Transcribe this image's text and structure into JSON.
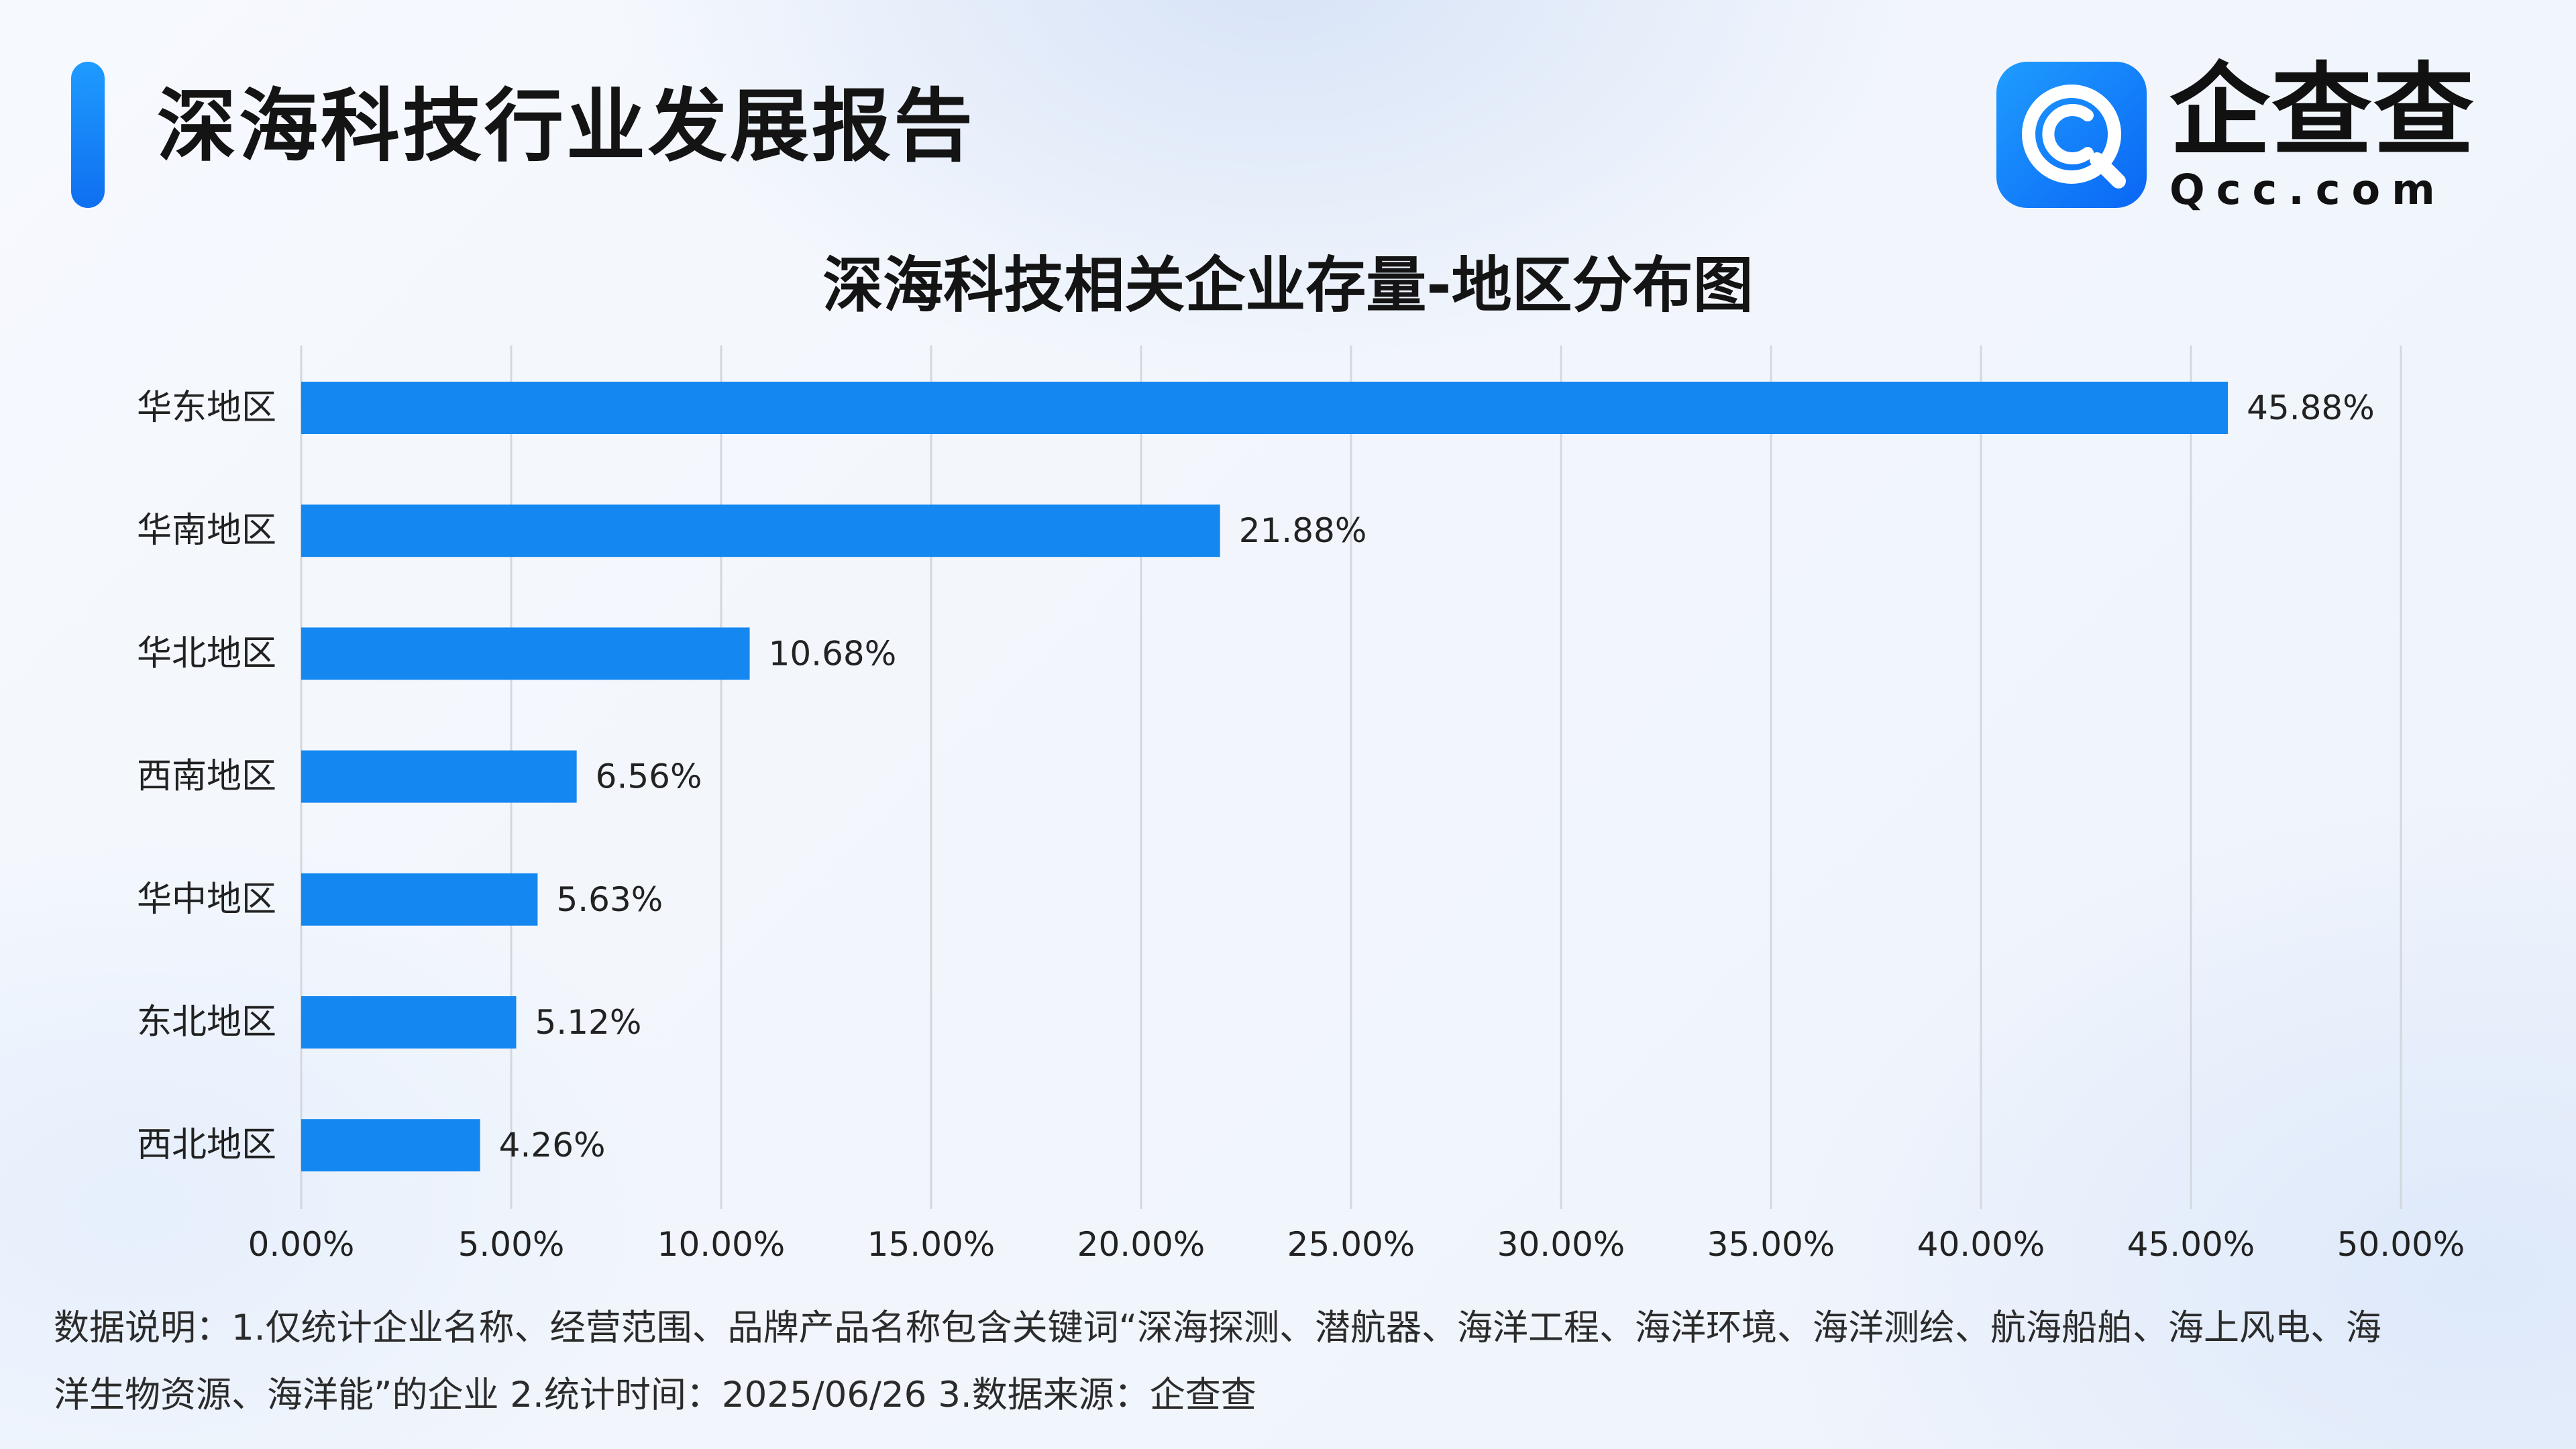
{
  "header": {
    "title": "深海科技行业发展报告",
    "brand_name": "企查查",
    "brand_domain": "Qcc.com"
  },
  "colors": {
    "accent": "#1487f0",
    "bar": "#1487f0",
    "brand": "#1677ff",
    "gridline": "#d3d7de"
  },
  "logo": {
    "icon": "qcc-logo-icon"
  },
  "chart_data": {
    "type": "bar",
    "orientation": "horizontal",
    "title": "深海科技相关企业存量-地区分布图",
    "xlabel": "",
    "ylabel": "",
    "categories": [
      "华东地区",
      "华南地区",
      "华北地区",
      "西南地区",
      "华中地区",
      "东北地区",
      "西北地区"
    ],
    "values": [
      45.88,
      21.88,
      10.68,
      6.56,
      5.63,
      5.12,
      4.26
    ],
    "value_labels": [
      "45.88%",
      "21.88%",
      "10.68%",
      "6.56%",
      "5.63%",
      "5.12%",
      "4.26%"
    ],
    "xlim": [
      0,
      50
    ],
    "x_ticks": [
      0,
      5,
      10,
      15,
      20,
      25,
      30,
      35,
      40,
      45,
      50
    ],
    "x_tick_labels": [
      "0.00%",
      "5.00%",
      "10.00%",
      "15.00%",
      "20.00%",
      "25.00%",
      "30.00%",
      "35.00%",
      "40.00%",
      "45.00%",
      "50.00%"
    ],
    "grid": true,
    "legend": "none"
  },
  "footnote": {
    "line1": "数据说明：1.仅统计企业名称、经营范围、品牌产品名称包含关键词“深海探测、潜航器、海洋工程、海洋环境、海洋测绘、航海船舶、海上风电、海",
    "line2": "洋生物资源、海洋能”的企业   2.统计时间：2025/06/26    3.数据来源：企查查"
  }
}
